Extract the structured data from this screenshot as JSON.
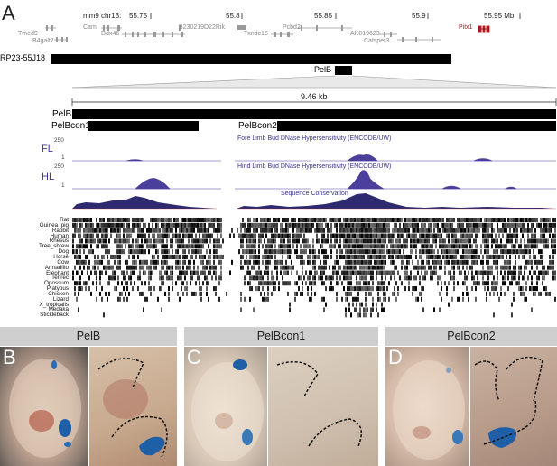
{
  "panels": {
    "A": "A",
    "B": "B",
    "C": "C",
    "D": "D"
  },
  "browser": {
    "assembly_chrom": "mm9 chr13:",
    "ruler_ticks": [
      "55.75",
      "55.8",
      "55.85",
      "55.9",
      "55.95 Mb"
    ],
    "genes": [
      "Tmed9",
      "B4galt7",
      "Caml",
      "Ddx46",
      "B230219D22Rik",
      "Txndc15",
      "Pcbd2",
      "AK019623",
      "Catsper3",
      "Pitx1"
    ],
    "bac_label": "RP23-55J18",
    "pelb_label": "PelB",
    "zoom_length": "9.46 kb",
    "elements": [
      "PelB",
      "PelBcon1",
      "PelBcon2"
    ],
    "fl_label": "FL",
    "hl_label": "HL",
    "fl_track_title": "Fore Limb Bud DNase Hypersensitivity (ENCODE/UW)",
    "hl_track_title": "Hind Limb Bud DNase Hypersensitivity (ENCODE/UW)",
    "conservation_title": "Sequence Conservation",
    "scale_max": "250",
    "scale_min": "1",
    "species": [
      "Rat",
      "Guinea_pig",
      "Rabbit",
      "Human",
      "Rhesus",
      "Tree_shrew",
      "Dog",
      "Horse",
      "Cow",
      "Armadillo",
      "Elephant",
      "Tenrec",
      "Opossum",
      "Platypus",
      "Chicken",
      "Lizard",
      "X_tropicalis",
      "Medaka",
      "Stickleback"
    ]
  },
  "embryo_panels": [
    {
      "letter": "B",
      "title": "PelB"
    },
    {
      "letter": "C",
      "title": "PelBcon1"
    },
    {
      "letter": "D",
      "title": "PelBcon2"
    }
  ],
  "colors": {
    "track_purple": "#3a3390",
    "gene_red": "#b0171f",
    "stain_blue": "#1f5fa8"
  }
}
